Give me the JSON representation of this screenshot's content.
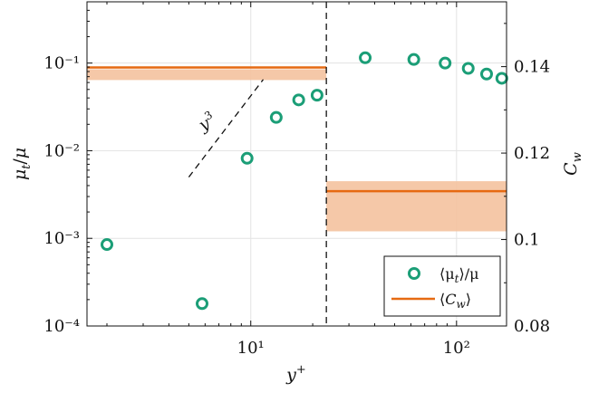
{
  "chart_data": {
    "type": "scatter",
    "title": "",
    "xlabel": "y+",
    "ylabel_left": "μt/μ",
    "ylabel_right": "Cw",
    "x_scale": "log",
    "y_left_scale": "log",
    "y_right_scale": "linear",
    "xlim": [
      1.6,
      175
    ],
    "ylim_left": [
      0.0001,
      0.5
    ],
    "ylim_right": [
      0.08,
      0.155
    ],
    "grid": true,
    "legend_position": "bottom-right",
    "x_tick_labels": [
      "10¹",
      "10²"
    ],
    "y_left_tick_labels": [
      "10⁻⁴",
      "10⁻³",
      "10⁻²",
      "10⁻¹"
    ],
    "y_right_tick_labels": [
      "0.08",
      "0.1",
      "0.12",
      "0.14"
    ],
    "series": [
      {
        "name": "⟨μt⟩/μ",
        "type": "scatter",
        "axis": "left",
        "color": "#1b9e77",
        "x": [
          2,
          5.8,
          9.6,
          13.3,
          17.1,
          21,
          36,
          62,
          88,
          114,
          140,
          166
        ],
        "y": [
          0.00085,
          0.00018,
          0.0082,
          0.024,
          0.038,
          0.043,
          0.115,
          0.11,
          0.1,
          0.087,
          0.075,
          0.067
        ]
      },
      {
        "name": "⟨Cw⟩",
        "type": "step",
        "axis": "right",
        "color": "#e66a12",
        "band_color": "#f4c29e",
        "segments": [
          {
            "x": [
              1.6,
              23.3
            ],
            "mean": 0.1398,
            "band": [
              0.1369,
              0.1394
            ]
          },
          {
            "x": [
              23.3,
              175
            ],
            "mean": 0.1112,
            "band": [
              0.1019,
              0.1135
            ]
          }
        ]
      }
    ],
    "annotations": [
      {
        "text": "y3",
        "kind": "reference-line",
        "slope": 3,
        "x": [
          5,
          11.5
        ],
        "y": [
          0.005,
          0.065
        ]
      },
      {
        "text": "",
        "kind": "vertical-dashed-line",
        "x": 23.3
      }
    ]
  }
}
